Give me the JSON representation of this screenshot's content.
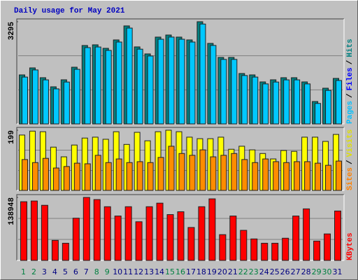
{
  "title": "Daily usage for May 2021",
  "categories": [
    "1",
    "2",
    "3",
    "4",
    "5",
    "6",
    "7",
    "8",
    "9",
    "10",
    "11",
    "12",
    "13",
    "14",
    "15",
    "16",
    "17",
    "18",
    "19",
    "20",
    "21",
    "22",
    "23",
    "24",
    "25",
    "26",
    "27",
    "28",
    "29",
    "30",
    "31"
  ],
  "category_colors": [
    "#008040",
    "#008040",
    "#000080",
    "#000080",
    "#000080",
    "#000080",
    "#000080",
    "#008040",
    "#008040",
    "#000080",
    "#000080",
    "#000080",
    "#000080",
    "#000080",
    "#008040",
    "#008040",
    "#000080",
    "#000080",
    "#000080",
    "#000080",
    "#000080",
    "#008040",
    "#008040",
    "#000080",
    "#000080",
    "#000080",
    "#000080",
    "#000080",
    "#008040",
    "#008040",
    "#000080"
  ],
  "legend_separator": "/",
  "chart_data": [
    {
      "type": "bar",
      "ylim": [
        0,
        3295
      ],
      "yticks": [
        3295
      ],
      "gridlines": [
        1098,
        2197
      ],
      "legend": [
        {
          "name": "Pages",
          "color": "#00c0ff"
        },
        {
          "name": "Files",
          "color": "#0000ff"
        },
        {
          "name": "Hits",
          "color": "#008080"
        }
      ],
      "series": [
        {
          "color": "#008080",
          "values": [
            1580,
            1806,
            1490,
            1196,
            1422,
            1828,
            2528,
            2550,
            2437,
            2708,
            3160,
            2483,
            2257,
            2799,
            2866,
            2799,
            2708,
            3295,
            2596,
            2144,
            2144,
            1625,
            1580,
            1354,
            1422,
            1490,
            1490,
            1354,
            722,
            1151,
            1467
          ]
        },
        {
          "color": "#00c8ff",
          "values": [
            1510,
            1740,
            1420,
            1130,
            1350,
            1760,
            2460,
            2480,
            2370,
            2640,
            3090,
            2410,
            2190,
            2730,
            2800,
            2730,
            2640,
            3220,
            2530,
            2080,
            2080,
            1560,
            1510,
            1290,
            1350,
            1420,
            1420,
            1290,
            660,
            1080,
            1400
          ]
        }
      ]
    },
    {
      "type": "bar",
      "ylim": [
        0,
        199
      ],
      "yticks": [
        199
      ],
      "gridlines": [
        66,
        133
      ],
      "legend": [
        {
          "name": "Sites",
          "color": "#ff8000"
        },
        {
          "name": "Visits",
          "color": "#e0e000"
        }
      ],
      "series": [
        {
          "color": "#ffff00",
          "values": [
            183,
            196,
            194,
            143,
            111,
            150,
            173,
            176,
            169,
            194,
            152,
            192,
            164,
            194,
            199,
            194,
            176,
            171,
            171,
            176,
            136,
            146,
            134,
            122,
            104,
            132,
            129,
            176,
            176,
            162,
            185
          ]
        },
        {
          "color": "#ff8c00",
          "values": [
            102,
            92,
            106,
            74,
            79,
            90,
            88,
            116,
            92,
            104,
            92,
            95,
            92,
            109,
            146,
            122,
            116,
            134,
            111,
            116,
            122,
            102,
            92,
            104,
            95,
            92,
            95,
            95,
            90,
            83,
            97
          ]
        }
      ]
    },
    {
      "type": "bar",
      "ylim": [
        0,
        138948
      ],
      "yticks": [
        138948
      ],
      "gridlines": [
        46316,
        92632
      ],
      "legend": [
        {
          "name": "KBytes",
          "color": "#ff0000"
        }
      ],
      "series": [
        {
          "color": "#ff0000",
          "values": [
            129478,
            131057,
            121583,
            44212,
            37896,
            93161,
            138948,
            134215,
            118425,
            97898,
            118425,
            85266,
            118425,
            126320,
            101056,
            107372,
            72634,
            118425,
            135794,
            56844,
            97898,
            66318,
            47370,
            37896,
            37896,
            48949,
            97898,
            113688,
            42633,
            58423,
            108951
          ]
        }
      ]
    }
  ]
}
